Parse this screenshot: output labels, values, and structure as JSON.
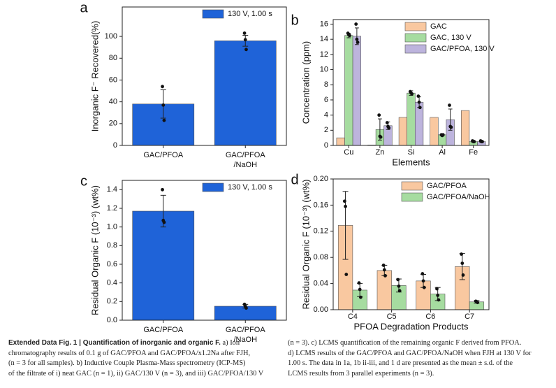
{
  "chart_data": [
    {
      "type": "bar",
      "label": "a",
      "ylabel": "Inorganic F⁻ Recovered(%)",
      "categories": [
        "GAC/PFOA",
        "GAC/PFOA\n/NaOH"
      ],
      "series": [
        {
          "name": "130 V, 1.00 s",
          "color": "#1f63d8",
          "values": [
            38,
            96
          ],
          "errors": [
            13,
            5
          ],
          "points": [
            [
              54,
              37,
              23
            ],
            [
              103,
              97,
              88
            ]
          ]
        }
      ],
      "ylim": [
        0,
        127
      ],
      "yticks": [
        0,
        20,
        40,
        60,
        80,
        100
      ],
      "legend": "upper right"
    },
    {
      "type": "bar",
      "label": "b",
      "ylabel": "Concentration (ppm)",
      "xlabel": "Elements",
      "categories": [
        "Cu",
        "Zn",
        "Si",
        "Al",
        "Fe"
      ],
      "series": [
        {
          "name": "GAC",
          "color": "#f9c8a0",
          "values": [
            1.0,
            0.05,
            3.7,
            3.7,
            4.6
          ]
        },
        {
          "name": "GAC, 130 V",
          "color": "#a6dca0",
          "values": [
            14.5,
            2.1,
            6.9,
            1.4,
            0.5
          ],
          "errors": [
            0.3,
            1.4,
            0.3,
            0.1,
            0.1
          ],
          "points": [
            [
              14.8,
              14.6,
              14.5
            ],
            [
              4.0,
              1.2,
              1.1
            ],
            [
              7.1,
              6.9,
              6.8
            ],
            [
              1.4,
              1.3,
              1.4
            ],
            [
              0.6,
              0.5,
              0.5
            ]
          ]
        },
        {
          "name": "GAC/PFOA, 130 V",
          "color": "#bdb4dd",
          "values": [
            14.4,
            2.6,
            5.7,
            3.4,
            0.5
          ],
          "errors": [
            1.1,
            0.5,
            0.7,
            1.4,
            0.1
          ],
          "points": [
            [
              16.0,
              14.0,
              13.6
            ],
            [
              3.0,
              2.5,
              2.3
            ],
            [
              6.5,
              5.7,
              5.0
            ],
            [
              5.3,
              2.5,
              2.4
            ],
            [
              0.6,
              0.5,
              0.5
            ]
          ]
        }
      ],
      "ylim": [
        0,
        16.6
      ],
      "yticks": [
        0,
        2,
        4,
        6,
        8,
        10,
        12,
        14,
        16
      ],
      "legend": "upper right"
    },
    {
      "type": "bar",
      "label": "c",
      "ylabel": "Residual Organic F (10⁻³) (wt%)",
      "categories": [
        "GAC/PFOA",
        "GAC/PFOA\n/NaOH"
      ],
      "series": [
        {
          "name": "130 V, 1.00 s",
          "color": "#1f63d8",
          "values": [
            1.17,
            0.15
          ],
          "errors": [
            0.17,
            0.02
          ],
          "points": [
            [
              1.4,
              1.07,
              1.05
            ],
            [
              0.17,
              0.15,
              0.13
            ]
          ]
        }
      ],
      "ylim": [
        0,
        1.5
      ],
      "yticks": [
        {
          "value": 0,
          "label": "0.0"
        },
        0.2,
        0.4,
        0.6,
        0.8,
        {
          "value": 1,
          "label": "1.0"
        },
        1.2,
        1.4
      ],
      "legend": "upper right"
    },
    {
      "type": "bar",
      "label": "d",
      "ylabel": "Residual Organic F (10⁻³) (wt%)",
      "xlabel": "PFOA Degradation Products",
      "categories": [
        "C4",
        "C5",
        "C6",
        "C7"
      ],
      "series": [
        {
          "name": "GAC/PFOA",
          "color": "#f9c8a0",
          "values": [
            0.129,
            0.06,
            0.044,
            0.066
          ],
          "errors": [
            0.052,
            0.008,
            0.01,
            0.02
          ],
          "points": [
            [
              0.166,
              0.158,
              0.054
            ],
            [
              0.068,
              0.061,
              0.052
            ],
            [
              0.055,
              0.044,
              0.034
            ],
            [
              0.085,
              0.071,
              0.053
            ]
          ]
        },
        {
          "name": "GAC/PFOA/NaOH",
          "color": "#a6dca0",
          "values": [
            0.03,
            0.037,
            0.024,
            0.012
          ],
          "errors": [
            0.01,
            0.01,
            0.01,
            0.002
          ],
          "points": [
            [
              0.041,
              0.031,
              0.019
            ],
            [
              0.046,
              0.036,
              0.029
            ],
            [
              0.032,
              0.022,
              0.015
            ],
            [
              0.013,
              0.012,
              0.011
            ]
          ]
        }
      ],
      "ylim": [
        0,
        0.2
      ],
      "yticks": [
        {
          "value": 0,
          "label": "0.00"
        },
        {
          "value": 0.04,
          "label": "0.04"
        },
        {
          "value": 0.08,
          "label": "0.08"
        },
        {
          "value": 0.12,
          "label": "0.12"
        },
        {
          "value": 0.16,
          "label": "0.16"
        },
        {
          "value": 0.2,
          "label": "0.20"
        }
      ],
      "legend": "upper right"
    }
  ],
  "caption": {
    "label": "Extended Data Fig. 1 | Quantification of inorganic and organic F.",
    "left": [
      " a) Ion",
      "chromatography results of 0.1 g of GAC/PFOA and GAC/PFOA/x1.2Na after FJH,",
      "(n = 3 for all samples). b) Inductive Couple Plasma-Mass spectrometry (ICP-MS)",
      "of the filtrate of i) neat GAC (n = 1), ii) GAC/130 V (n = 3), and iii) GAC/PFOA/130 V"
    ],
    "right": [
      "(n = 3). c) LCMS quantification of the remaining organic F derived from PFOA.",
      "d) LCMS results of the GAC/PFOA and GAC/PFOA/NaOH when FJH at 130 V for",
      "1.00 s. The data in 1a, 1b ii-iii, and 1 d are presented as the mean ± s.d. of the",
      "LCMS results from 3 parallel experiments (n = 3)."
    ]
  }
}
